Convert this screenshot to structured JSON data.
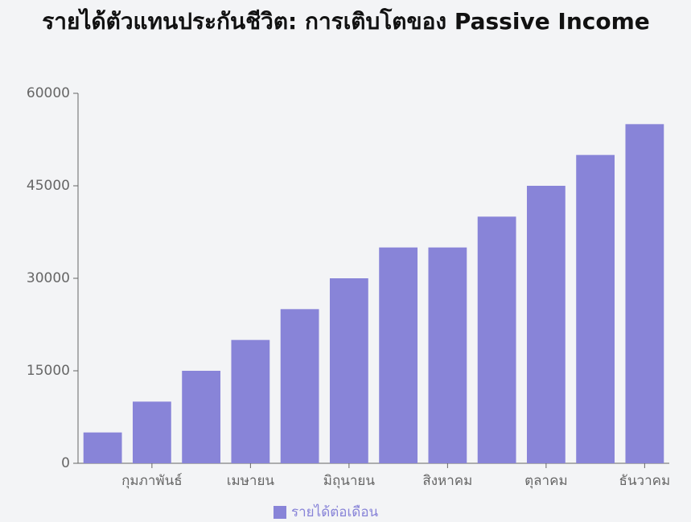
{
  "chart_data": {
    "type": "bar",
    "title": "รายได้ตัวแทนประกันชีวิต: การเติบโตของ Passive Income",
    "categories": [
      null,
      "กุมภาพันธ์",
      null,
      "เมษายน",
      null,
      "มิถุนายน",
      null,
      "สิงหาคม",
      null,
      "ตุลาคม",
      null,
      "ธันวาคม"
    ],
    "series": [
      {
        "name": "รายได้ต่อเดือน",
        "color": "#8884d8",
        "values": [
          5000,
          10000,
          15000,
          20000,
          25000,
          30000,
          35000,
          35000,
          40000,
          45000,
          50000,
          55000
        ]
      }
    ],
    "ylim": [
      0,
      60000
    ],
    "yticks": [
      0,
      15000,
      30000,
      45000,
      60000
    ],
    "grid": false
  }
}
